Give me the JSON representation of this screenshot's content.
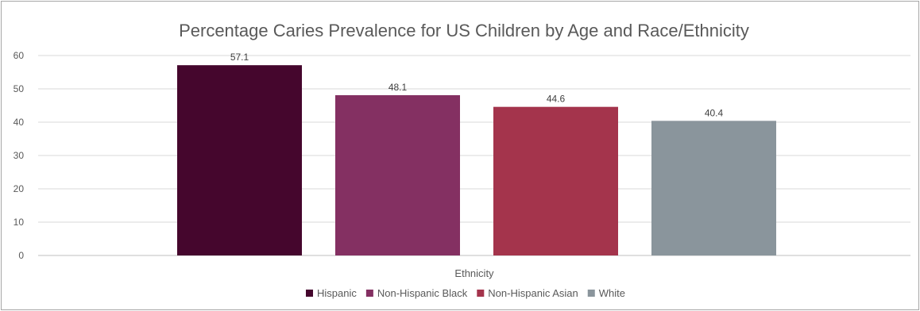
{
  "chart_data": {
    "type": "bar",
    "title": "Percentage Caries Prevalence for US Children by Age and Race/Ethnicity",
    "xlabel": "Ethnicity",
    "ylabel": "",
    "categories": [
      "Ethnicity"
    ],
    "ylim": [
      0,
      60
    ],
    "yticks": [
      0,
      10,
      20,
      30,
      40,
      50,
      60
    ],
    "grid": true,
    "legend_position": "bottom",
    "series": [
      {
        "name": "Hispanic",
        "values": [
          57.1
        ],
        "label": "57.1",
        "color": "#45062d"
      },
      {
        "name": "Non-Hispanic Black",
        "values": [
          48.1
        ],
        "label": "48.1",
        "color": "#843062"
      },
      {
        "name": "Non-Hispanic Asian",
        "values": [
          44.6
        ],
        "label": "44.6",
        "color": "#a4344c"
      },
      {
        "name": "White",
        "values": [
          40.4
        ],
        "label": "40.4",
        "color": "#8a959c"
      }
    ]
  }
}
